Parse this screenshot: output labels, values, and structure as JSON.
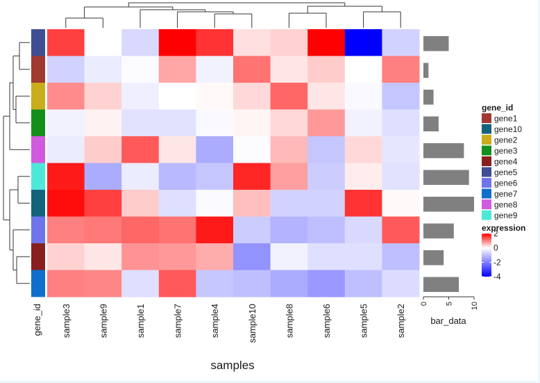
{
  "chart_data": {
    "type": "heatmap",
    "title": "",
    "xlabel": "samples",
    "samples": [
      "sample3",
      "sample9",
      "sample1",
      "sample7",
      "sample4",
      "sample10",
      "sample8",
      "sample6",
      "sample5",
      "sample2"
    ],
    "row_annotation_title": "gene_id",
    "rows": [
      "gene5",
      "gene1",
      "gene2",
      "gene3",
      "gene8",
      "gene9",
      "gene10",
      "gene6",
      "gene4",
      "gene7"
    ],
    "values": [
      [
        1.5,
        0.0,
        -0.6,
        2.0,
        1.6,
        0.25,
        0.35,
        2.0,
        -4.0,
        -0.7
      ],
      [
        -0.7,
        -0.3,
        -0.05,
        0.7,
        -0.2,
        1.1,
        0.2,
        0.4,
        0.0,
        1.0
      ],
      [
        0.9,
        0.35,
        -0.25,
        0.0,
        0.05,
        0.3,
        1.2,
        0.2,
        -0.1,
        -0.9
      ],
      [
        -0.2,
        0.1,
        -0.45,
        -0.45,
        -0.1,
        0.08,
        0.3,
        0.8,
        -0.2,
        -0.5
      ],
      [
        -0.3,
        0.4,
        1.3,
        0.2,
        -1.3,
        -0.05,
        0.55,
        -0.9,
        0.3,
        -0.4
      ],
      [
        1.8,
        -1.3,
        -0.3,
        -1.1,
        -0.9,
        1.7,
        0.75,
        -0.8,
        0.15,
        -0.45
      ],
      [
        1.9,
        1.5,
        0.4,
        -0.5,
        -0.08,
        0.5,
        -0.7,
        -0.7,
        1.6,
        0.05
      ],
      [
        1.0,
        1.05,
        1.2,
        1.1,
        1.8,
        -0.8,
        -1.2,
        -1.0,
        -0.6,
        1.3
      ],
      [
        0.35,
        0.2,
        0.85,
        0.8,
        0.65,
        -1.7,
        -0.2,
        -0.5,
        -0.5,
        -1.0
      ],
      [
        1.0,
        0.95,
        -0.5,
        1.3,
        -0.9,
        -1.0,
        -1.3,
        -1.6,
        -1.0,
        -0.55
      ]
    ],
    "row_annotation_colors": {
      "gene5": "#3F4E93",
      "gene1": "#A0392F",
      "gene2": "#C9AD1B",
      "gene3": "#138F1B",
      "gene8": "#D15BDF",
      "gene9": "#4EE8D8",
      "gene10": "#13637A",
      "gene6": "#6E75EC",
      "gene4": "#891F1E",
      "gene7": "#0F6FCC"
    },
    "bar_title": "bar_data",
    "bar_values": [
      5,
      1,
      2,
      3,
      8,
      9,
      10,
      6,
      4,
      7
    ],
    "bar_ticks": [
      0,
      5,
      10
    ],
    "bar_xlim": [
      0,
      10
    ],
    "bar_color": "#808080",
    "color_scale": {
      "low": "#0000FF",
      "mid": "#FFFFFF",
      "high": "#FF0000",
      "min": -4,
      "max": 2
    },
    "legend_gene": {
      "title": "gene_id",
      "entries": [
        "gene1",
        "gene10",
        "gene2",
        "gene3",
        "gene4",
        "gene5",
        "gene6",
        "gene7",
        "gene8",
        "gene9"
      ]
    },
    "legend_expression": {
      "title": "expression",
      "ticks": [
        "2",
        "0",
        "-2",
        "-4"
      ],
      "tick_values": [
        2,
        0,
        -2,
        -4
      ]
    }
  }
}
